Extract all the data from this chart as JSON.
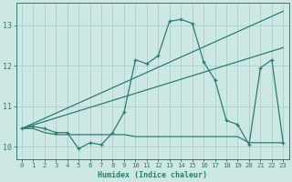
{
  "xlabel": "Humidex (Indice chaleur)",
  "bg_color": "#cde8e4",
  "grid_color": "#aad0cc",
  "line_color": "#2e7b70",
  "xlim": [
    -0.5,
    23.5
  ],
  "ylim": [
    9.7,
    13.55
  ],
  "yticks": [
    10,
    11,
    12,
    13
  ],
  "xticks": [
    0,
    1,
    2,
    3,
    4,
    5,
    6,
    7,
    8,
    9,
    10,
    11,
    12,
    13,
    14,
    15,
    16,
    17,
    18,
    19,
    20,
    21,
    22,
    23
  ],
  "series_main": {
    "x": [
      0,
      1,
      2,
      3,
      4,
      5,
      6,
      7,
      8,
      9,
      10,
      11,
      12,
      13,
      14,
      15,
      16,
      17,
      18,
      19,
      20,
      21,
      22,
      23
    ],
    "y": [
      10.45,
      10.5,
      10.45,
      10.35,
      10.35,
      9.95,
      10.1,
      10.05,
      10.35,
      10.85,
      12.15,
      12.05,
      12.25,
      13.1,
      13.15,
      13.05,
      12.1,
      11.65,
      10.65,
      10.55,
      10.05,
      11.95,
      12.15,
      10.1
    ]
  },
  "series_trend1": {
    "x": [
      0,
      23
    ],
    "y": [
      10.45,
      13.35
    ]
  },
  "series_trend2": {
    "x": [
      0,
      23
    ],
    "y": [
      10.45,
      12.45
    ]
  },
  "series_flat": {
    "x": [
      0,
      1,
      2,
      3,
      4,
      5,
      6,
      7,
      8,
      9,
      10,
      11,
      12,
      13,
      14,
      15,
      16,
      17,
      18,
      19,
      20,
      21,
      22,
      23
    ],
    "y": [
      10.45,
      10.45,
      10.35,
      10.3,
      10.3,
      10.3,
      10.3,
      10.3,
      10.3,
      10.3,
      10.25,
      10.25,
      10.25,
      10.25,
      10.25,
      10.25,
      10.25,
      10.25,
      10.25,
      10.25,
      10.1,
      10.1,
      10.1,
      10.1
    ]
  }
}
